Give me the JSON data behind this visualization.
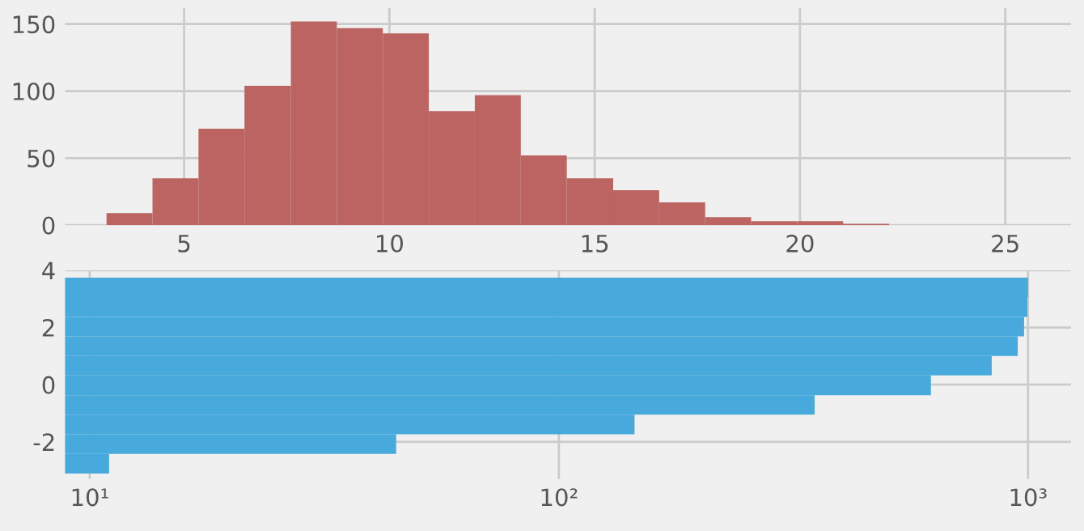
{
  "chart_data": [
    {
      "type": "histogram",
      "bins": [
        3.11,
        4.23,
        5.35,
        6.47,
        7.6,
        8.72,
        9.84,
        10.96,
        12.08,
        13.2,
        14.32,
        15.45,
        16.57,
        17.69,
        18.81,
        19.93,
        21.05,
        22.17
      ],
      "values": [
        9,
        35,
        72,
        104,
        152,
        147,
        143,
        85,
        97,
        52,
        35,
        26,
        17,
        6,
        3,
        3,
        1
      ],
      "color": "#bb6462",
      "xlim": [
        2.1,
        26.6
      ],
      "xticks": [
        5,
        10,
        15,
        20,
        25
      ],
      "ylim": [
        0,
        162
      ],
      "yticks": [
        0,
        50,
        100,
        150
      ],
      "grid": true
    },
    {
      "type": "histogram",
      "orientation": "horizontal",
      "log": "x",
      "bins": [
        -3.11,
        -2.42,
        -1.74,
        -1.05,
        -0.37,
        0.32,
        1.0,
        1.69,
        2.37,
        3.06,
        3.74
      ],
      "values": [
        11,
        45,
        145,
        351,
        621,
        837,
        951,
        981,
        997,
        1000
      ],
      "color": "#47a9dc",
      "xlim": [
        8.86,
        1235
      ],
      "xticks": [
        {
          "value": 10,
          "label": "10¹"
        },
        {
          "value": 100,
          "label": "10²"
        },
        {
          "value": 1000,
          "label": "10³"
        }
      ],
      "ylim": [
        -3.3,
        4.0
      ],
      "yticks": [
        -2,
        0,
        2,
        4
      ],
      "grid": true
    }
  ]
}
